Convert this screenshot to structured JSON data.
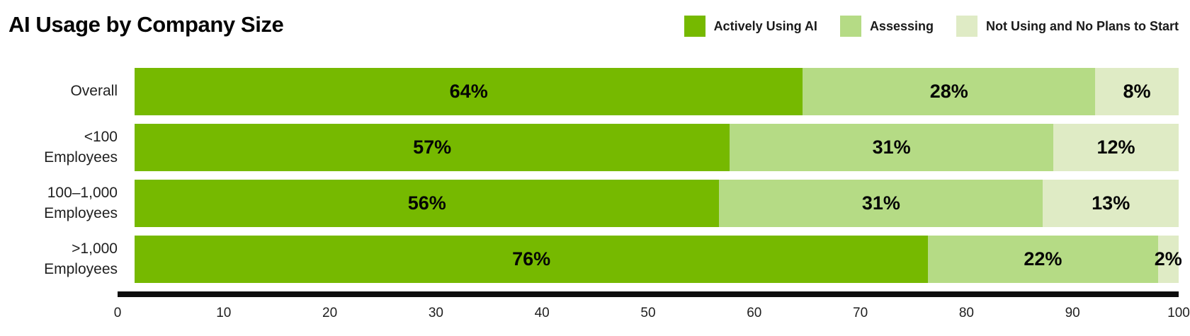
{
  "title": "AI Usage by Company Size",
  "colors": {
    "active": "#76B900",
    "assessing": "#B5DB85",
    "not_using": "#DFEBC5",
    "axis": "#0d0d0d"
  },
  "legend": {
    "items": [
      {
        "label": "Actively Using AI",
        "color": "#76B900"
      },
      {
        "label": "Assessing",
        "color": "#B5DB85"
      },
      {
        "label": "Not Using and No Plans to Start",
        "color": "#DFEBC5"
      }
    ]
  },
  "chart_data": {
    "type": "bar",
    "orientation": "horizontal",
    "stacked": true,
    "title": "AI Usage by Company Size",
    "categories": [
      "Overall",
      "<100 Employees",
      "100–1,000 Employees",
      ">1,000 Employees"
    ],
    "series": [
      {
        "name": "Actively Using AI",
        "color": "#76B900",
        "values": [
          64,
          57,
          56,
          76
        ]
      },
      {
        "name": "Assessing",
        "color": "#B5DB85",
        "values": [
          28,
          31,
          31,
          22
        ]
      },
      {
        "name": "Not Using and No Plans to Start",
        "color": "#DFEBC5",
        "values": [
          8,
          12,
          13,
          2
        ]
      }
    ],
    "value_label_format": "{value}%",
    "xlabel": "",
    "ylabel": "",
    "xlim": [
      0,
      100
    ],
    "x_ticks": [
      0,
      10,
      20,
      30,
      40,
      50,
      60,
      70,
      80,
      90,
      100
    ],
    "grid": false,
    "legend_position": "top-right"
  },
  "rows": [
    {
      "label_line1": "Overall",
      "label_line2": "",
      "segments": [
        {
          "value": 64,
          "text": "64%"
        },
        {
          "value": 28,
          "text": "28%"
        },
        {
          "value": 8,
          "text": "8%"
        }
      ]
    },
    {
      "label_line1": "<100",
      "label_line2": "Employees",
      "segments": [
        {
          "value": 57,
          "text": "57%"
        },
        {
          "value": 31,
          "text": "31%"
        },
        {
          "value": 12,
          "text": "12%"
        }
      ]
    },
    {
      "label_line1": "100–1,000",
      "label_line2": "Employees",
      "segments": [
        {
          "value": 56,
          "text": "56%"
        },
        {
          "value": 31,
          "text": "31%"
        },
        {
          "value": 13,
          "text": "13%"
        }
      ]
    },
    {
      "label_line1": ">1,000",
      "label_line2": "Employees",
      "segments": [
        {
          "value": 76,
          "text": "76%"
        },
        {
          "value": 22,
          "text": "22%"
        },
        {
          "value": 2,
          "text": "2%"
        }
      ]
    }
  ],
  "x_axis": {
    "ticks": [
      "0",
      "10",
      "20",
      "30",
      "40",
      "50",
      "60",
      "70",
      "80",
      "90",
      "100"
    ]
  }
}
